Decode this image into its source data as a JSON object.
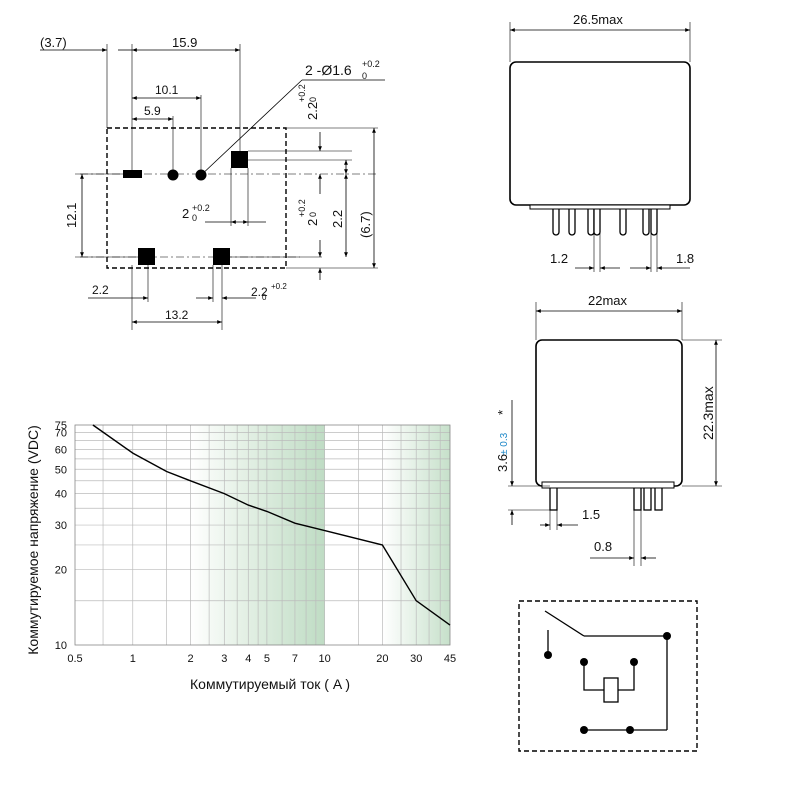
{
  "pcb_layout": {
    "dims": {
      "d37": "(3.7)",
      "d159": "15.9",
      "d101": "10.1",
      "d59": "5.9",
      "hole": "2 -Ø1.6",
      "hole_tol": "+0.2",
      "hole_tol0": "0",
      "d22top": "2.2",
      "d22top_tol": "+0.2",
      "d22top_tol0": "0",
      "d2": "2",
      "d2_tol": "+0.2",
      "d2_tol0": "0",
      "d2v": "2",
      "d2v_tol": "+0.2",
      "d2v_tol0": "0",
      "d22v": "2.2",
      "d67": "(6.7)",
      "d121": "12.1",
      "d22bot": "2.2",
      "d22bot2": "2.2",
      "d22bot2_tol": "+0.2",
      "d22bot2_tol0": "0",
      "d132": "13.2"
    }
  },
  "side_view": {
    "width_label": "26.5max",
    "pin1": "1.2",
    "pin2": "1.8"
  },
  "front_view": {
    "width_label": "22max",
    "height_label": "22.3max",
    "pin_len": "3.6",
    "pin_len_tol": "± 0.3",
    "pin_len_star": "*",
    "pin_w": "1.5",
    "pin_t": "0.8"
  },
  "chart_data": {
    "type": "line",
    "title": "",
    "xlabel": "Коммутируемый ток ( A )",
    "ylabel": "Коммутируемое напряжение (VDC)",
    "xscale": "log",
    "yscale": "log",
    "xlim": [
      0.5,
      45
    ],
    "ylim": [
      10,
      75
    ],
    "x_ticks": [
      "0.5",
      "1",
      "2",
      "3",
      "4",
      "5",
      "7",
      "10",
      "20",
      "30",
      "45"
    ],
    "y_ticks": [
      "10",
      "20",
      "30",
      "40",
      "50",
      "60",
      "70",
      "75"
    ],
    "x": [
      0.62,
      1.0,
      1.5,
      2,
      3,
      4,
      5,
      7,
      10,
      20,
      30,
      45
    ],
    "y": [
      75,
      58,
      49,
      45,
      40,
      36,
      34,
      30.5,
      28.5,
      25,
      15,
      12
    ],
    "grid": true,
    "colors": {
      "band": "#cfe6d2",
      "line": "#000000"
    }
  }
}
